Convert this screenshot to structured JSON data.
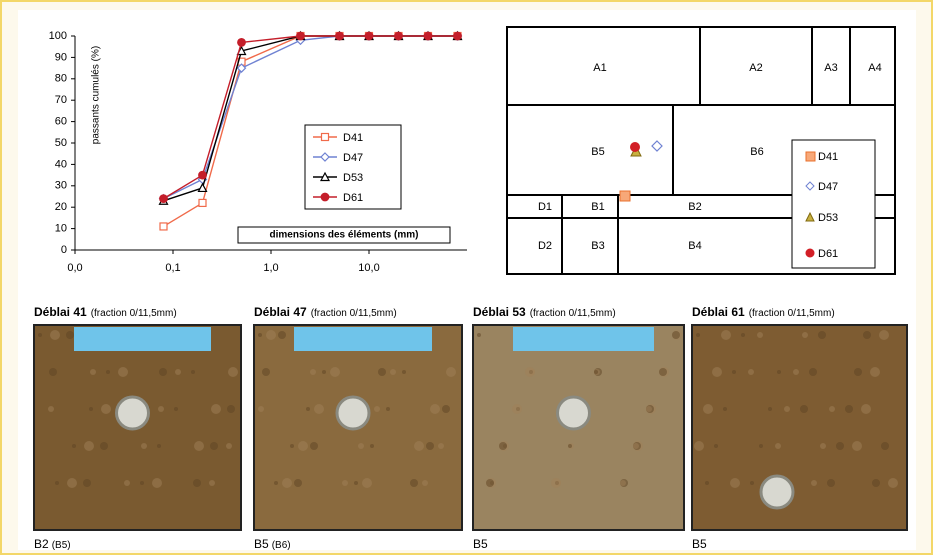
{
  "chart_data": {
    "type": "line",
    "y_label": "passants cumulés (%)",
    "x_label": "dimensions des éléments (mm)",
    "log_x": true,
    "grid": false,
    "x": [
      0.08,
      0.2,
      0.5,
      2,
      5,
      10,
      20,
      40,
      80
    ],
    "xlim": [
      0.01,
      100
    ],
    "xticks": [
      {
        "value": 0.01,
        "label": "0,0"
      },
      {
        "value": 0.1,
        "label": "0,1"
      },
      {
        "value": 1,
        "label": "1,0"
      },
      {
        "value": 10,
        "label": "10,0"
      }
    ],
    "ylim": [
      0,
      100
    ],
    "yticks": [
      0,
      10,
      20,
      30,
      40,
      50,
      60,
      70,
      80,
      90,
      100
    ],
    "series": [
      {
        "name": "D41",
        "color": "#f06a4a",
        "marker": "square",
        "values": [
          11,
          22,
          88,
          100,
          100,
          100,
          100,
          100,
          100
        ]
      },
      {
        "name": "D47",
        "color": "#6f82d2",
        "marker": "diamond",
        "values": [
          24,
          33,
          85,
          98,
          100,
          100,
          100,
          100,
          100
        ]
      },
      {
        "name": "D53",
        "color": "#000000",
        "marker": "triangle",
        "values": [
          23,
          29,
          93,
          100,
          100,
          100,
          100,
          100,
          100
        ]
      },
      {
        "name": "D61",
        "color": "#c41e2a",
        "marker": "circle",
        "values": [
          24,
          35,
          97,
          100,
          100,
          100,
          100,
          100,
          100
        ]
      }
    ]
  },
  "classification": {
    "cells": [
      "A1",
      "A2",
      "A3",
      "A4",
      "B5",
      "B6",
      "D1",
      "B1",
      "B2",
      "D2",
      "B3",
      "B4"
    ],
    "legend": [
      "D41",
      "D47",
      "D53",
      "D61"
    ]
  },
  "photos": [
    {
      "title": "Déblai 41",
      "fraction": "(fraction 0/11,5mm)",
      "class": "B2",
      "alt_class": "(B5)"
    },
    {
      "title": "Déblai 47",
      "fraction": "(fraction 0/11,5mm)",
      "class": "B5",
      "alt_class": "(B6)"
    },
    {
      "title": "Déblai 53",
      "fraction": "(fraction 0/11,5mm)",
      "class": "B5"
    },
    {
      "title": "Déblai 61",
      "fraction": "(fraction 0/11,5mm)",
      "class": "B5"
    }
  ]
}
